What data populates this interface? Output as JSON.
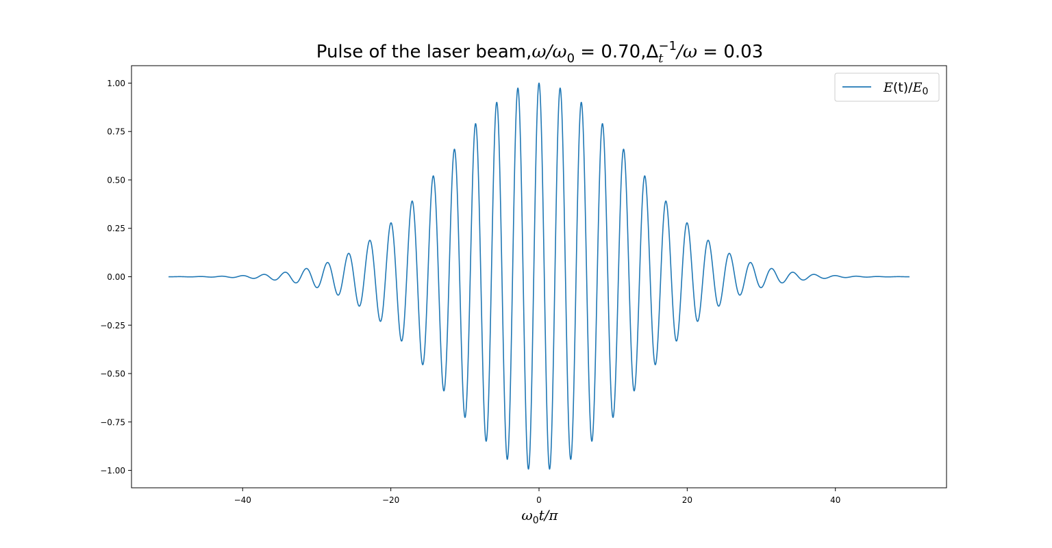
{
  "chart_data": {
    "type": "line",
    "title": {
      "prefix": "Pulse of the laser beam,",
      "omega": "ω",
      "slash": "/",
      "omega0_base": "ω",
      "omega0_sub": "0",
      "eq1": " = 0.70,",
      "delta_base": "Δ",
      "delta_sub": "t",
      "delta_sup": "−1",
      "slash2": "/",
      "omega2": "ω",
      "eq2": " = 0.03"
    },
    "xlabel": {
      "base": "ω",
      "sub": "0",
      "rest": "t/π"
    },
    "ylabel": "",
    "xlim": [
      -55,
      55
    ],
    "ylim": [
      -1.09,
      1.09
    ],
    "x_ticks": [
      -40,
      -20,
      0,
      20,
      40
    ],
    "x_tick_labels": [
      "−40",
      "−20",
      "0",
      "20",
      "40"
    ],
    "y_ticks": [
      -1.0,
      -0.75,
      -0.5,
      -0.25,
      0.0,
      0.25,
      0.5,
      0.75,
      1.0
    ],
    "y_tick_labels": [
      "−1.00",
      "−0.75",
      "−0.50",
      "−0.25",
      "0.00",
      "0.25",
      "0.50",
      "0.75",
      "1.00"
    ],
    "grid": false,
    "legend": {
      "position": "top-right"
    },
    "series": [
      {
        "name_parts": {
          "E": "E",
          "paren_t": "(t)",
          "slash": "/",
          "E0_base": "E",
          "E0_sub": "0"
        },
        "color": "#1f77b4",
        "description": "Gaussian-envelope cosine pulse",
        "x_range": [
          -50,
          50
        ],
        "carrier_period": 2.857,
        "envelope_peak": 1.0,
        "envelope_sigma": 12.5
      }
    ]
  }
}
